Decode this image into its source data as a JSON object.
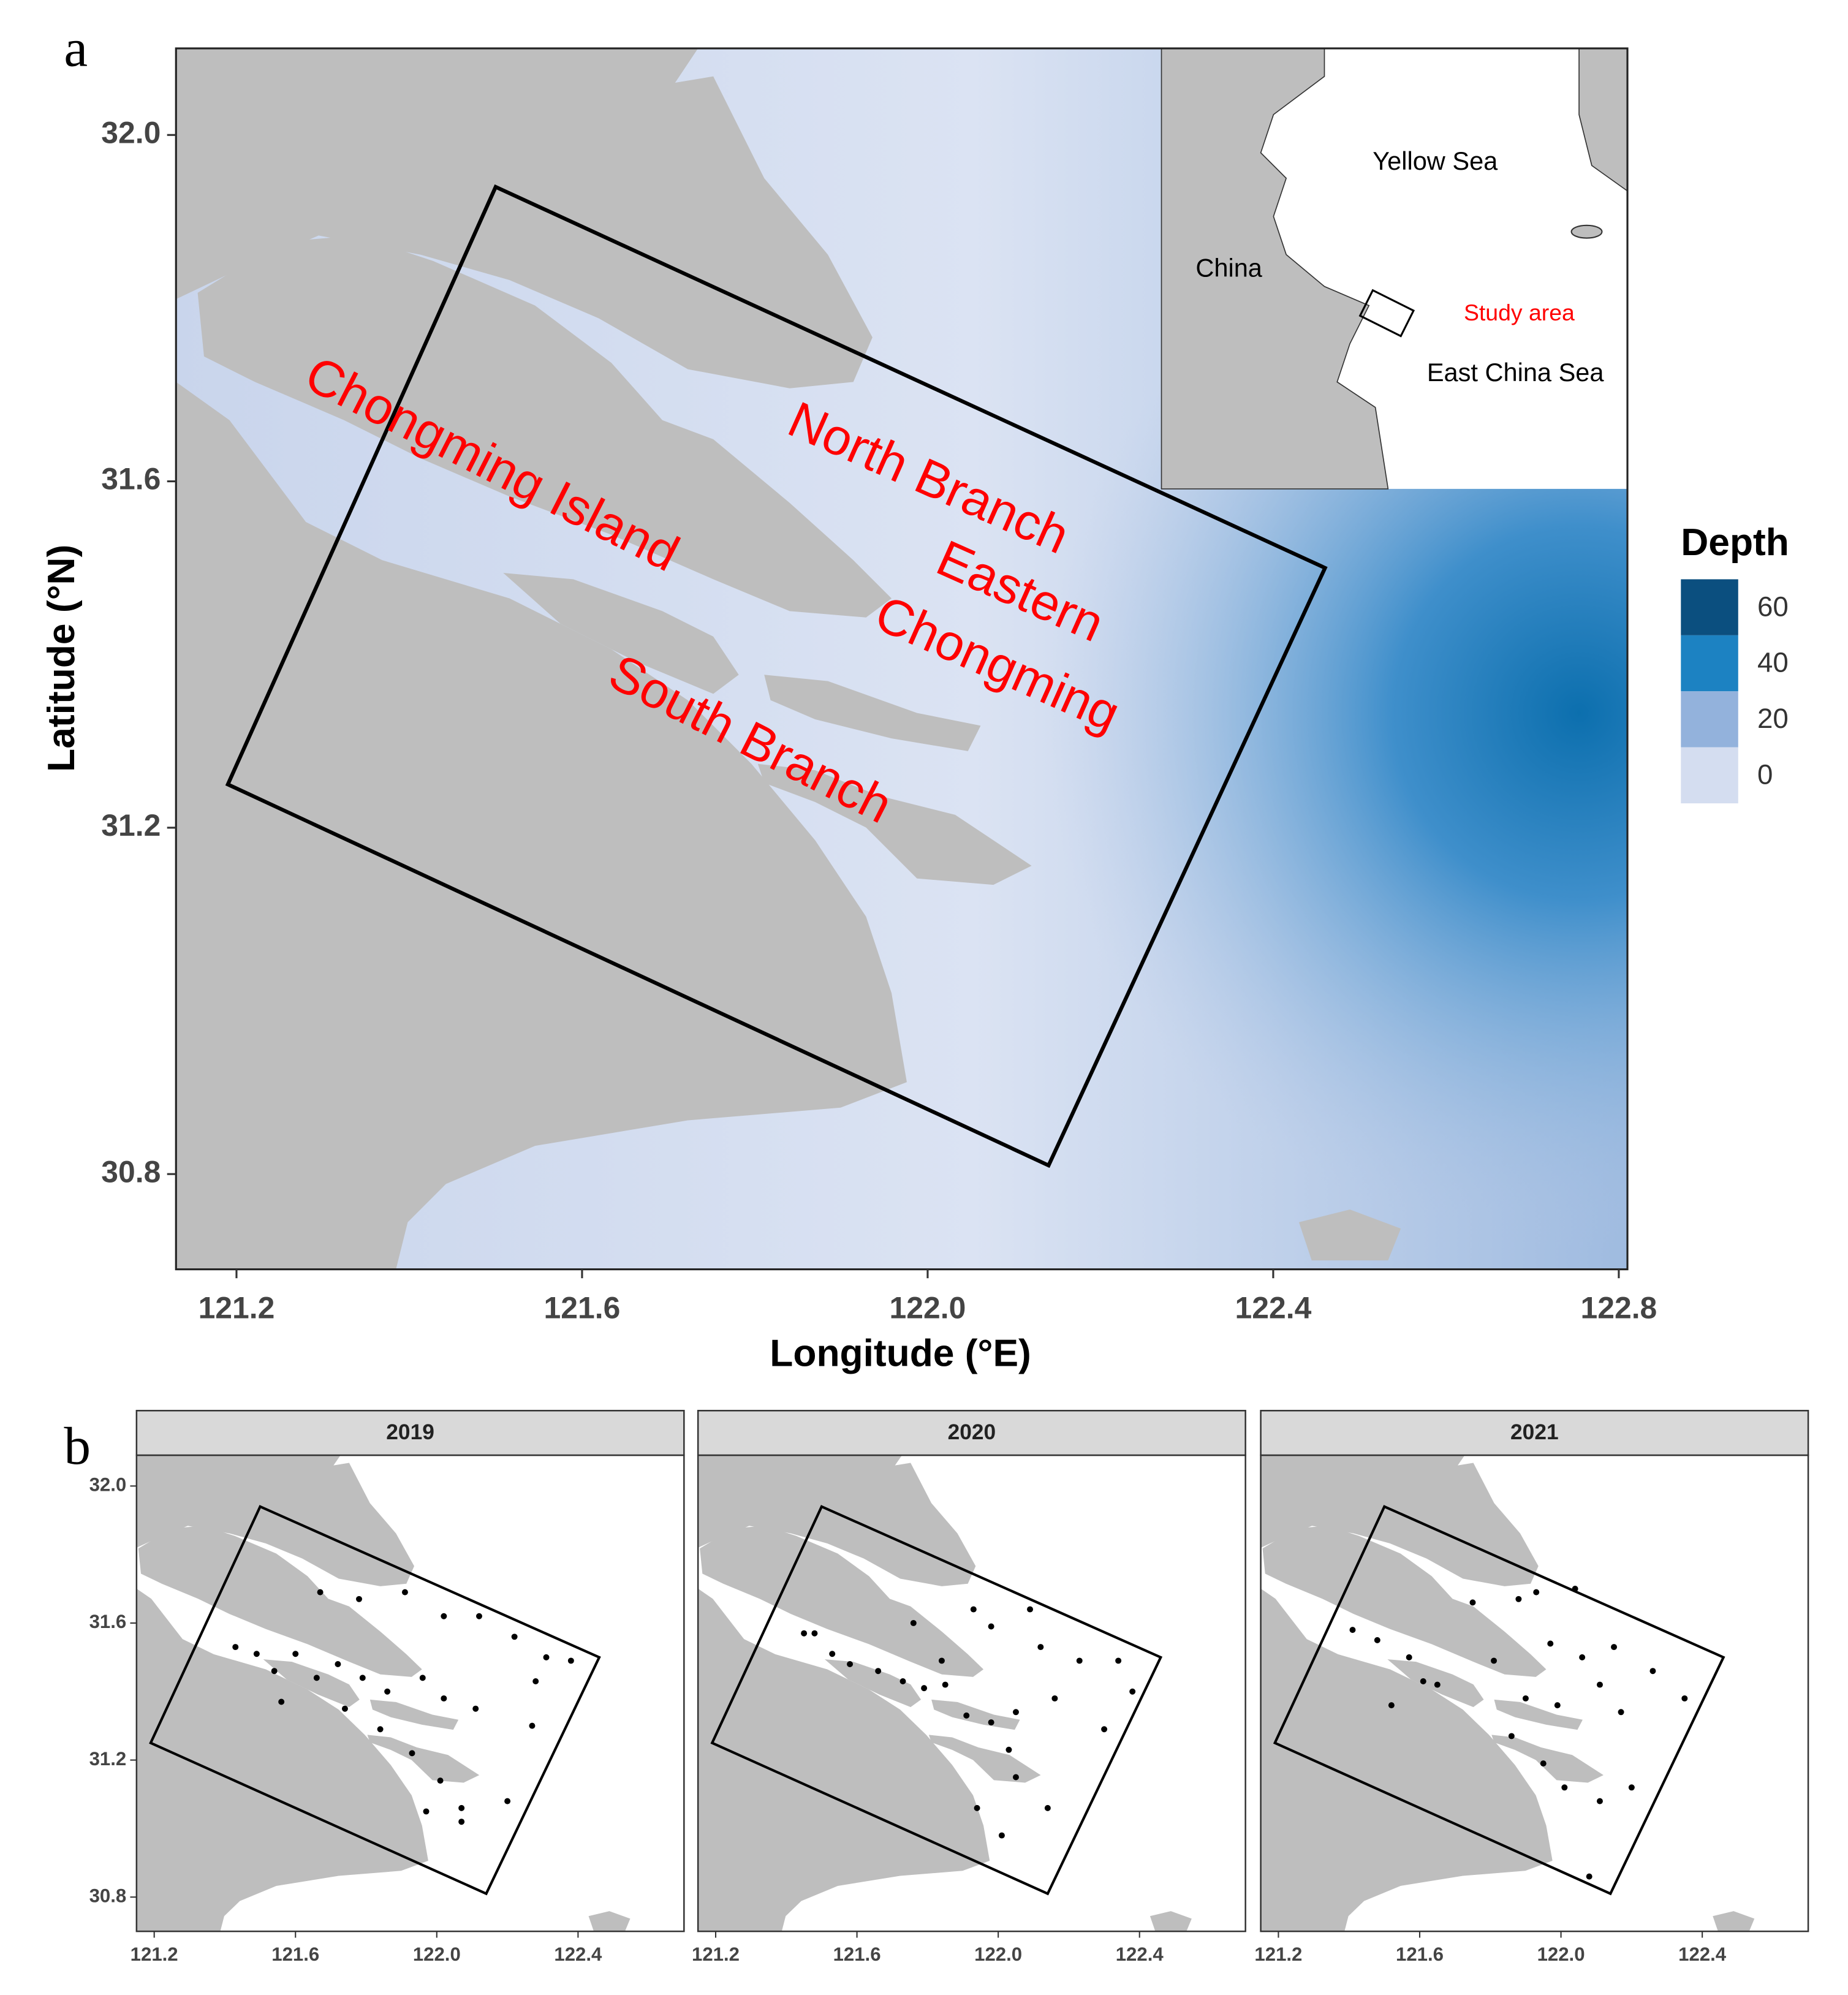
{
  "panel_a": {
    "label": "a",
    "x_label": "Longitude (°E)",
    "y_label": "Latitude (°N)",
    "xlim": [
      121.13,
      122.81
    ],
    "ylim": [
      30.69,
      32.1
    ],
    "xticks": [
      121.2,
      121.6,
      {
        "value": 122,
        "label": "122.0"
      },
      122.4,
      122.8
    ],
    "yticks": [
      30.8,
      31.2,
      31.6,
      {
        "value": 32,
        "label": "32.0"
      }
    ],
    "study_area": {
      "lon": [
        121.5,
        122.46,
        122.14,
        121.19
      ],
      "lat": [
        31.94,
        31.5,
        30.81,
        31.25
      ]
    },
    "place_labels": [
      "Chongming Island",
      "North Branch",
      "Eastern",
      "Chongming",
      "South Branch"
    ],
    "inset": {
      "labels": [
        "Yellow Sea",
        "China",
        "East China Sea"
      ],
      "study_area_label": "Study area"
    },
    "legend": {
      "title": "Depth",
      "breaks": [
        60,
        40,
        20,
        0
      ],
      "colors": [
        "#0b4f7f",
        "#1c82c2",
        "#93b2dc",
        "#d4ddf0"
      ]
    }
  },
  "panel_b": {
    "label": "b",
    "xlim": [
      121.15,
      122.7
    ],
    "ylim": [
      30.7,
      32.09
    ],
    "xticks": [
      121.2,
      121.6,
      {
        "value": 122,
        "label": "122.0"
      },
      122.4
    ],
    "yticks": [
      30.8,
      31.2,
      31.6,
      {
        "value": 32,
        "label": "32.0"
      }
    ],
    "facets": [
      {
        "title": "2019",
        "lon": [
          121.67,
          121.78,
          121.91,
          122.02,
          122.12,
          122.22,
          122.31,
          122.38,
          121.43,
          121.49,
          121.54,
          121.6,
          121.66,
          121.72,
          121.79,
          121.86,
          121.96,
          122.02,
          122.11,
          122.28,
          122.27,
          121.84,
          121.93,
          122.01,
          122.07,
          121.97,
          122.2,
          122.07,
          121.56,
          121.74
        ],
        "lat": [
          31.69,
          31.67,
          31.69,
          31.62,
          31.62,
          31.56,
          31.5,
          31.49,
          31.53,
          31.51,
          31.46,
          31.51,
          31.44,
          31.48,
          31.44,
          31.4,
          31.44,
          31.38,
          31.35,
          31.43,
          31.3,
          31.29,
          31.22,
          31.14,
          31.06,
          31.05,
          31.08,
          31.02,
          31.37,
          31.35
        ]
      },
      {
        "title": "2020",
        "lon": [
          121.45,
          121.48,
          121.53,
          121.58,
          121.66,
          121.73,
          121.79,
          121.85,
          121.93,
          121.98,
          122.09,
          122.12,
          122.23,
          122.34,
          122.38,
          122.3,
          122.16,
          122.05,
          121.98,
          121.91,
          122.03,
          122.05,
          121.94,
          122.01,
          122.14,
          121.84,
          121.76
        ],
        "lat": [
          31.57,
          31.57,
          31.51,
          31.48,
          31.46,
          31.43,
          31.41,
          31.42,
          31.64,
          31.59,
          31.64,
          31.53,
          31.49,
          31.49,
          31.4,
          31.29,
          31.38,
          31.34,
          31.31,
          31.33,
          31.23,
          31.15,
          31.06,
          30.98,
          31.06,
          31.49,
          31.6
        ]
      },
      {
        "title": "2021",
        "lon": [
          121.41,
          121.48,
          121.57,
          121.65,
          121.75,
          121.88,
          121.93,
          122.04,
          121.97,
          122.06,
          122.15,
          122.26,
          122.35,
          122.17,
          122.11,
          121.99,
          121.9,
          121.86,
          121.95,
          122.01,
          122.11,
          122.2,
          122.08,
          121.52,
          121.61,
          121.81
        ],
        "lat": [
          31.58,
          31.55,
          31.5,
          31.42,
          31.66,
          31.67,
          31.69,
          31.7,
          31.54,
          31.5,
          31.53,
          31.46,
          31.38,
          31.34,
          31.42,
          31.36,
          31.38,
          31.27,
          31.19,
          31.12,
          31.08,
          31.12,
          30.86,
          31.36,
          31.43,
          31.49
        ]
      }
    ]
  }
}
